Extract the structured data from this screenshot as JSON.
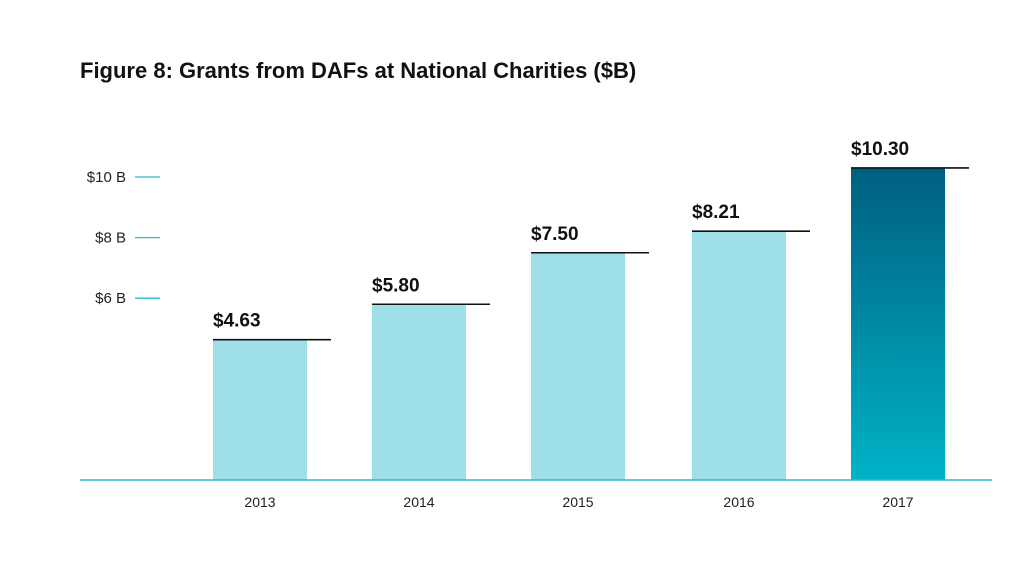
{
  "chart_data": {
    "type": "bar",
    "title": "Figure 8: Grants from DAFs at National Charities ($B)",
    "xlabel": "",
    "ylabel": "",
    "categories": [
      "2013",
      "2014",
      "2015",
      "2016",
      "2017"
    ],
    "values": [
      4.63,
      5.8,
      7.5,
      8.21,
      10.3
    ],
    "data_labels": [
      "$4.63",
      "$5.80",
      "$7.50",
      "$8.21",
      "$10.30"
    ],
    "yticks": [
      {
        "value": 6,
        "label": "$6 B"
      },
      {
        "value": 8,
        "label": "$8 B"
      },
      {
        "value": 10,
        "label": "$10 B"
      }
    ],
    "ylim": [
      0,
      10.3
    ],
    "grid": false,
    "legend": "none",
    "highlight_category": "2017",
    "colors": {
      "bar": "#9fdfe8",
      "highlight_top": "#005f80",
      "highlight_bottom": "#00b3c7",
      "axis": "#2bb8c7",
      "tick": "#2bb8c7",
      "cap_line": "#111111"
    }
  }
}
